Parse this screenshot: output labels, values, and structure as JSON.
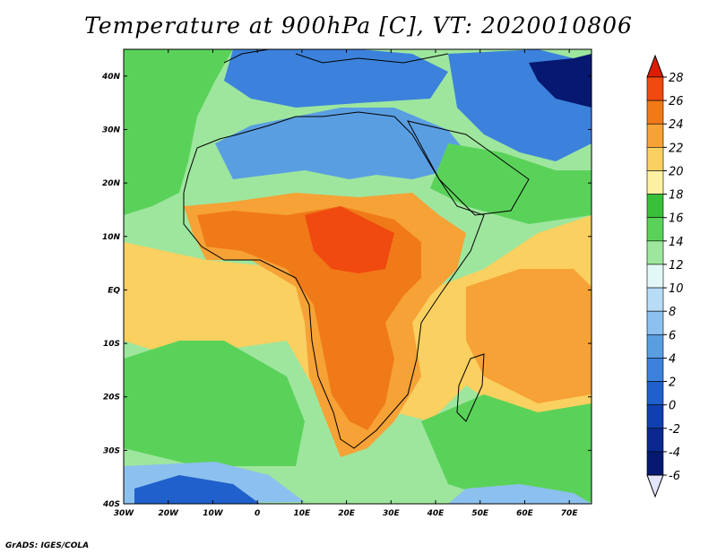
{
  "title": "Temperature at 900hPa [C], VT: 2020010806",
  "credit": "GrADS: IGES/COLA",
  "map": {
    "lon_range": [
      -30,
      75
    ],
    "lat_range": [
      -40,
      45
    ],
    "lon_ticks": [
      {
        "value": -30,
        "label": "30W"
      },
      {
        "value": -20,
        "label": "20W"
      },
      {
        "value": -10,
        "label": "10W"
      },
      {
        "value": 0,
        "label": "0"
      },
      {
        "value": 10,
        "label": "10E"
      },
      {
        "value": 20,
        "label": "20E"
      },
      {
        "value": 30,
        "label": "30E"
      },
      {
        "value": 40,
        "label": "40E"
      },
      {
        "value": 50,
        "label": "50E"
      },
      {
        "value": 60,
        "label": "60E"
      },
      {
        "value": 70,
        "label": "70E"
      }
    ],
    "lat_ticks": [
      {
        "value": 40,
        "label": "40N"
      },
      {
        "value": 30,
        "label": "30N"
      },
      {
        "value": 20,
        "label": "20N"
      },
      {
        "value": 10,
        "label": "10N"
      },
      {
        "value": 0,
        "label": "EQ"
      },
      {
        "value": -10,
        "label": "10S"
      },
      {
        "value": -20,
        "label": "20S"
      },
      {
        "value": -30,
        "label": "30S"
      },
      {
        "value": -40,
        "label": "40S"
      }
    ]
  },
  "colorbar": {
    "levels": [
      {
        "label": "28",
        "color": "#cc2200"
      },
      {
        "label": "26",
        "color": "#f04a10"
      },
      {
        "label": "24",
        "color": "#f07a18"
      },
      {
        "label": "22",
        "color": "#f6a236"
      },
      {
        "label": "20",
        "color": "#fad060"
      },
      {
        "label": "18",
        "color": "#fdf0a0"
      },
      {
        "label": "16",
        "color": "#38c038"
      },
      {
        "label": "14",
        "color": "#5ad25a"
      },
      {
        "label": "12",
        "color": "#9ee69e"
      },
      {
        "label": "10",
        "color": "#e2f8f6"
      },
      {
        "label": "8",
        "color": "#b8dcf6"
      },
      {
        "label": "6",
        "color": "#8cc0ee"
      },
      {
        "label": "4",
        "color": "#5a9ee2"
      },
      {
        "label": "2",
        "color": "#3c82dc"
      },
      {
        "label": "0",
        "color": "#2060cc"
      },
      {
        "label": "-2",
        "color": "#1040b0"
      },
      {
        "label": "-4",
        "color": "#0a2890"
      },
      {
        "label": "-6",
        "color": "#061870"
      }
    ],
    "top_color": "#dc1e00",
    "bottom_color": "#e4e4fc"
  },
  "field_colors": {
    "ocean_base": "#9ee69e",
    "ocean_warm": "#fad060",
    "ocean_warmer": "#f6a236",
    "land_cool": "#5a9ee2",
    "land_cold": "#3c82dc",
    "land_hot": "#f07a18",
    "land_hottest": "#f04a10",
    "green_belt": "#5ad25a",
    "cold_ocean": "#8cc0ee",
    "very_cold": "#2060cc",
    "arctic": "#061870"
  }
}
